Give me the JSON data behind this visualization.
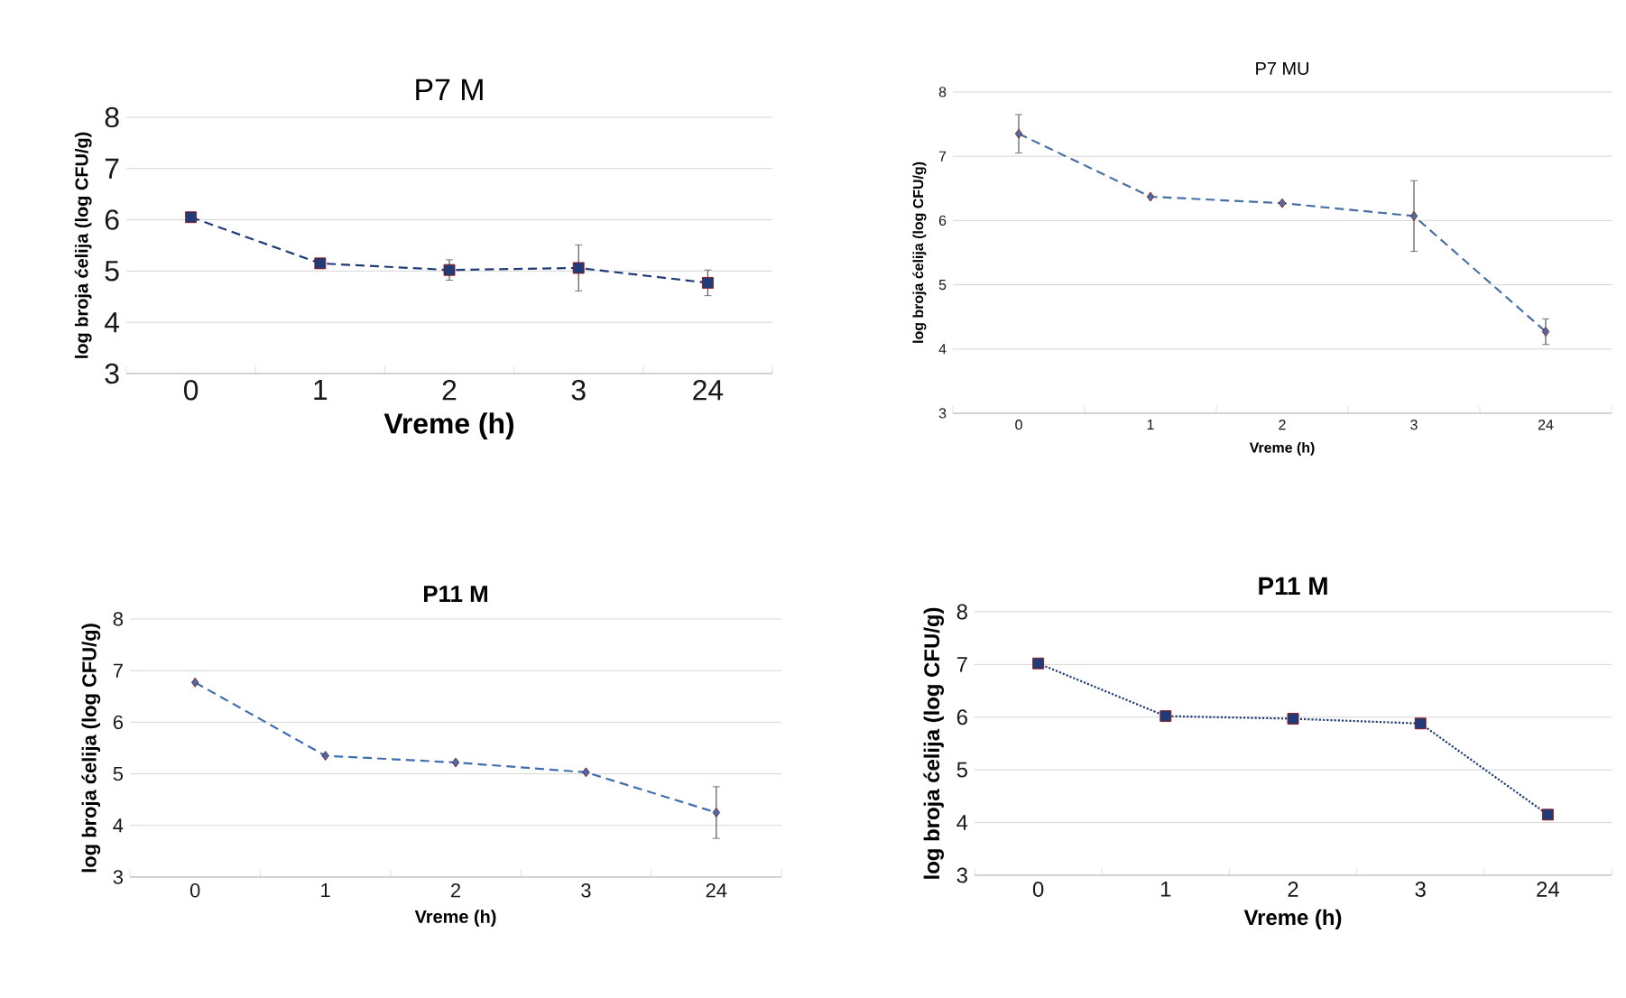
{
  "chart_data": [
    {
      "type": "line",
      "title": "P7 M",
      "xlabel": "Vreme (h)",
      "ylabel": "log broja ćelija (log CFU/g)",
      "categories": [
        "0",
        "1",
        "2",
        "3",
        "24"
      ],
      "ylim": [
        3,
        8
      ],
      "yticks": [
        3,
        4,
        5,
        6,
        7,
        8
      ],
      "grid": "y",
      "marker": "square",
      "line_style": "dashed",
      "series": [
        {
          "color": "#1f3c78",
          "values": [
            6.05,
            5.15,
            5.02,
            5.06,
            4.77
          ],
          "errors": [
            null,
            null,
            0.2,
            0.45,
            0.25
          ]
        }
      ]
    },
    {
      "type": "line",
      "title": "P7 MU",
      "xlabel": "Vreme (h)",
      "ylabel": "log broja ćelija (log CFU/g)",
      "categories": [
        "0",
        "1",
        "2",
        "3",
        "24"
      ],
      "ylim": [
        3,
        8
      ],
      "yticks": [
        3,
        4,
        5,
        6,
        7,
        8
      ],
      "grid": "y",
      "marker": "diamond",
      "line_style": "dashed",
      "series": [
        {
          "color": "#4a6fa5",
          "values": [
            7.35,
            6.37,
            6.27,
            6.07,
            4.27
          ],
          "errors": [
            0.3,
            null,
            null,
            0.55,
            0.2
          ]
        }
      ]
    },
    {
      "type": "line",
      "title": "P11 M",
      "xlabel": "Vreme (h)",
      "ylabel": "log broja ćelija (log CFU/g)",
      "categories": [
        "0",
        "1",
        "2",
        "3",
        "24"
      ],
      "ylim": [
        3,
        8
      ],
      "yticks": [
        3,
        4,
        5,
        6,
        7,
        8
      ],
      "grid": "y",
      "marker": "diamond",
      "line_style": "dashed",
      "series": [
        {
          "color": "#3f6fb0",
          "values": [
            6.77,
            5.35,
            5.22,
            5.03,
            4.25
          ],
          "errors": [
            null,
            null,
            null,
            null,
            0.5
          ]
        }
      ]
    },
    {
      "type": "line",
      "title": "P11 M",
      "xlabel": "Vreme (h)",
      "ylabel": "log broja ćelija (log CFU/g)",
      "categories": [
        "0",
        "1",
        "2",
        "3",
        "24"
      ],
      "ylim": [
        3,
        8
      ],
      "yticks": [
        3,
        4,
        5,
        6,
        7,
        8
      ],
      "grid": "y",
      "marker": "square",
      "line_style": "dotted",
      "series": [
        {
          "color": "#1f3c78",
          "values": [
            7.02,
            6.02,
            5.97,
            5.88,
            4.15
          ]
        }
      ]
    }
  ]
}
